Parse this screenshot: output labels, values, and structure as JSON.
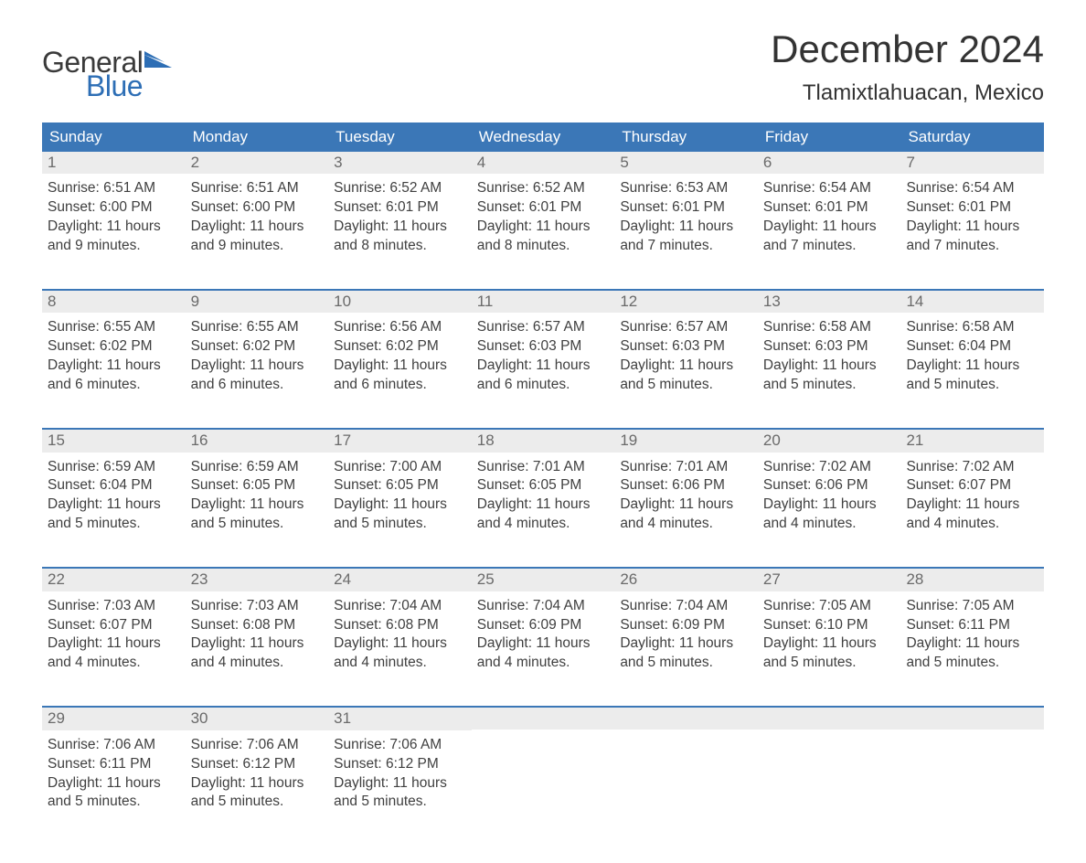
{
  "brand": {
    "word1": "General",
    "word2": "Blue",
    "word1_color": "#3a3a3a",
    "word2_color": "#2d6eb5",
    "flag_color": "#2d6eb5"
  },
  "header": {
    "month_title": "December 2024",
    "location": "Tlamixtlahuacan, Mexico",
    "title_fontsize": 42,
    "location_fontsize": 24
  },
  "colors": {
    "header_bg": "#3b77b7",
    "header_text": "#ffffff",
    "daynum_bg": "#ececec",
    "daynum_text": "#6a6a6a",
    "body_text": "#3f3f3f",
    "week_divider": "#3b77b7",
    "page_bg": "#ffffff"
  },
  "weekdays": [
    "Sunday",
    "Monday",
    "Tuesday",
    "Wednesday",
    "Thursday",
    "Friday",
    "Saturday"
  ],
  "days": [
    {
      "n": "1",
      "sunrise": "Sunrise: 6:51 AM",
      "sunset": "Sunset: 6:00 PM",
      "daylight1": "Daylight: 11 hours",
      "daylight2": "and 9 minutes."
    },
    {
      "n": "2",
      "sunrise": "Sunrise: 6:51 AM",
      "sunset": "Sunset: 6:00 PM",
      "daylight1": "Daylight: 11 hours",
      "daylight2": "and 9 minutes."
    },
    {
      "n": "3",
      "sunrise": "Sunrise: 6:52 AM",
      "sunset": "Sunset: 6:01 PM",
      "daylight1": "Daylight: 11 hours",
      "daylight2": "and 8 minutes."
    },
    {
      "n": "4",
      "sunrise": "Sunrise: 6:52 AM",
      "sunset": "Sunset: 6:01 PM",
      "daylight1": "Daylight: 11 hours",
      "daylight2": "and 8 minutes."
    },
    {
      "n": "5",
      "sunrise": "Sunrise: 6:53 AM",
      "sunset": "Sunset: 6:01 PM",
      "daylight1": "Daylight: 11 hours",
      "daylight2": "and 7 minutes."
    },
    {
      "n": "6",
      "sunrise": "Sunrise: 6:54 AM",
      "sunset": "Sunset: 6:01 PM",
      "daylight1": "Daylight: 11 hours",
      "daylight2": "and 7 minutes."
    },
    {
      "n": "7",
      "sunrise": "Sunrise: 6:54 AM",
      "sunset": "Sunset: 6:01 PM",
      "daylight1": "Daylight: 11 hours",
      "daylight2": "and 7 minutes."
    },
    {
      "n": "8",
      "sunrise": "Sunrise: 6:55 AM",
      "sunset": "Sunset: 6:02 PM",
      "daylight1": "Daylight: 11 hours",
      "daylight2": "and 6 minutes."
    },
    {
      "n": "9",
      "sunrise": "Sunrise: 6:55 AM",
      "sunset": "Sunset: 6:02 PM",
      "daylight1": "Daylight: 11 hours",
      "daylight2": "and 6 minutes."
    },
    {
      "n": "10",
      "sunrise": "Sunrise: 6:56 AM",
      "sunset": "Sunset: 6:02 PM",
      "daylight1": "Daylight: 11 hours",
      "daylight2": "and 6 minutes."
    },
    {
      "n": "11",
      "sunrise": "Sunrise: 6:57 AM",
      "sunset": "Sunset: 6:03 PM",
      "daylight1": "Daylight: 11 hours",
      "daylight2": "and 6 minutes."
    },
    {
      "n": "12",
      "sunrise": "Sunrise: 6:57 AM",
      "sunset": "Sunset: 6:03 PM",
      "daylight1": "Daylight: 11 hours",
      "daylight2": "and 5 minutes."
    },
    {
      "n": "13",
      "sunrise": "Sunrise: 6:58 AM",
      "sunset": "Sunset: 6:03 PM",
      "daylight1": "Daylight: 11 hours",
      "daylight2": "and 5 minutes."
    },
    {
      "n": "14",
      "sunrise": "Sunrise: 6:58 AM",
      "sunset": "Sunset: 6:04 PM",
      "daylight1": "Daylight: 11 hours",
      "daylight2": "and 5 minutes."
    },
    {
      "n": "15",
      "sunrise": "Sunrise: 6:59 AM",
      "sunset": "Sunset: 6:04 PM",
      "daylight1": "Daylight: 11 hours",
      "daylight2": "and 5 minutes."
    },
    {
      "n": "16",
      "sunrise": "Sunrise: 6:59 AM",
      "sunset": "Sunset: 6:05 PM",
      "daylight1": "Daylight: 11 hours",
      "daylight2": "and 5 minutes."
    },
    {
      "n": "17",
      "sunrise": "Sunrise: 7:00 AM",
      "sunset": "Sunset: 6:05 PM",
      "daylight1": "Daylight: 11 hours",
      "daylight2": "and 5 minutes."
    },
    {
      "n": "18",
      "sunrise": "Sunrise: 7:01 AM",
      "sunset": "Sunset: 6:05 PM",
      "daylight1": "Daylight: 11 hours",
      "daylight2": "and 4 minutes."
    },
    {
      "n": "19",
      "sunrise": "Sunrise: 7:01 AM",
      "sunset": "Sunset: 6:06 PM",
      "daylight1": "Daylight: 11 hours",
      "daylight2": "and 4 minutes."
    },
    {
      "n": "20",
      "sunrise": "Sunrise: 7:02 AM",
      "sunset": "Sunset: 6:06 PM",
      "daylight1": "Daylight: 11 hours",
      "daylight2": "and 4 minutes."
    },
    {
      "n": "21",
      "sunrise": "Sunrise: 7:02 AM",
      "sunset": "Sunset: 6:07 PM",
      "daylight1": "Daylight: 11 hours",
      "daylight2": "and 4 minutes."
    },
    {
      "n": "22",
      "sunrise": "Sunrise: 7:03 AM",
      "sunset": "Sunset: 6:07 PM",
      "daylight1": "Daylight: 11 hours",
      "daylight2": "and 4 minutes."
    },
    {
      "n": "23",
      "sunrise": "Sunrise: 7:03 AM",
      "sunset": "Sunset: 6:08 PM",
      "daylight1": "Daylight: 11 hours",
      "daylight2": "and 4 minutes."
    },
    {
      "n": "24",
      "sunrise": "Sunrise: 7:04 AM",
      "sunset": "Sunset: 6:08 PM",
      "daylight1": "Daylight: 11 hours",
      "daylight2": "and 4 minutes."
    },
    {
      "n": "25",
      "sunrise": "Sunrise: 7:04 AM",
      "sunset": "Sunset: 6:09 PM",
      "daylight1": "Daylight: 11 hours",
      "daylight2": "and 4 minutes."
    },
    {
      "n": "26",
      "sunrise": "Sunrise: 7:04 AM",
      "sunset": "Sunset: 6:09 PM",
      "daylight1": "Daylight: 11 hours",
      "daylight2": "and 5 minutes."
    },
    {
      "n": "27",
      "sunrise": "Sunrise: 7:05 AM",
      "sunset": "Sunset: 6:10 PM",
      "daylight1": "Daylight: 11 hours",
      "daylight2": "and 5 minutes."
    },
    {
      "n": "28",
      "sunrise": "Sunrise: 7:05 AM",
      "sunset": "Sunset: 6:11 PM",
      "daylight1": "Daylight: 11 hours",
      "daylight2": "and 5 minutes."
    },
    {
      "n": "29",
      "sunrise": "Sunrise: 7:06 AM",
      "sunset": "Sunset: 6:11 PM",
      "daylight1": "Daylight: 11 hours",
      "daylight2": "and 5 minutes."
    },
    {
      "n": "30",
      "sunrise": "Sunrise: 7:06 AM",
      "sunset": "Sunset: 6:12 PM",
      "daylight1": "Daylight: 11 hours",
      "daylight2": "and 5 minutes."
    },
    {
      "n": "31",
      "sunrise": "Sunrise: 7:06 AM",
      "sunset": "Sunset: 6:12 PM",
      "daylight1": "Daylight: 11 hours",
      "daylight2": "and 5 minutes."
    }
  ],
  "layout": {
    "columns": 7,
    "first_weekday_index": 0,
    "trailing_empty": 4
  }
}
